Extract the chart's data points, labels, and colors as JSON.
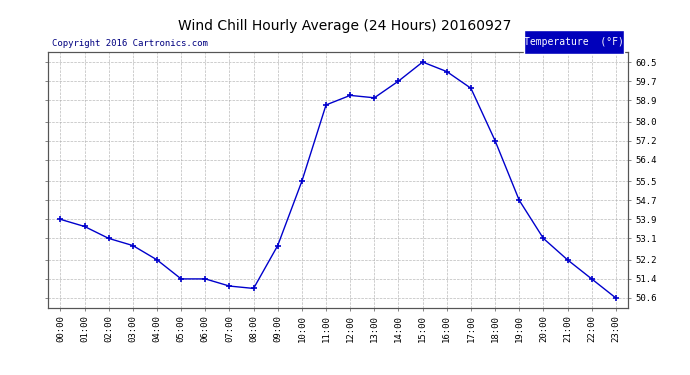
{
  "title": "Wind Chill Hourly Average (24 Hours) 20160927",
  "copyright": "Copyright 2016 Cartronics.com",
  "legend_label": "Temperature  (°F)",
  "x_labels": [
    "00:00",
    "01:00",
    "02:00",
    "03:00",
    "04:00",
    "05:00",
    "06:00",
    "07:00",
    "08:00",
    "09:00",
    "10:00",
    "11:00",
    "12:00",
    "13:00",
    "14:00",
    "15:00",
    "16:00",
    "17:00",
    "18:00",
    "19:00",
    "20:00",
    "21:00",
    "22:00",
    "23:00"
  ],
  "y_values": [
    53.9,
    53.6,
    53.1,
    52.8,
    52.2,
    51.4,
    51.4,
    51.1,
    51.0,
    52.8,
    55.5,
    58.7,
    59.1,
    59.0,
    59.7,
    60.5,
    60.1,
    59.4,
    57.2,
    54.7,
    53.1,
    52.2,
    51.4,
    50.6
  ],
  "y_ticks": [
    50.6,
    51.4,
    52.2,
    53.1,
    53.9,
    54.7,
    55.5,
    56.4,
    57.2,
    58.0,
    58.9,
    59.7,
    60.5
  ],
  "ylim_min": 50.2,
  "ylim_max": 60.9,
  "line_color": "#0000cc",
  "marker_color": "#0000cc",
  "bg_color": "#ffffff",
  "plot_bg_color": "#ffffff",
  "grid_color": "#aaaaaa",
  "title_color": "#000000",
  "legend_bg": "#0000bb",
  "legend_text": "#ffffff",
  "copyright_color": "#000080"
}
